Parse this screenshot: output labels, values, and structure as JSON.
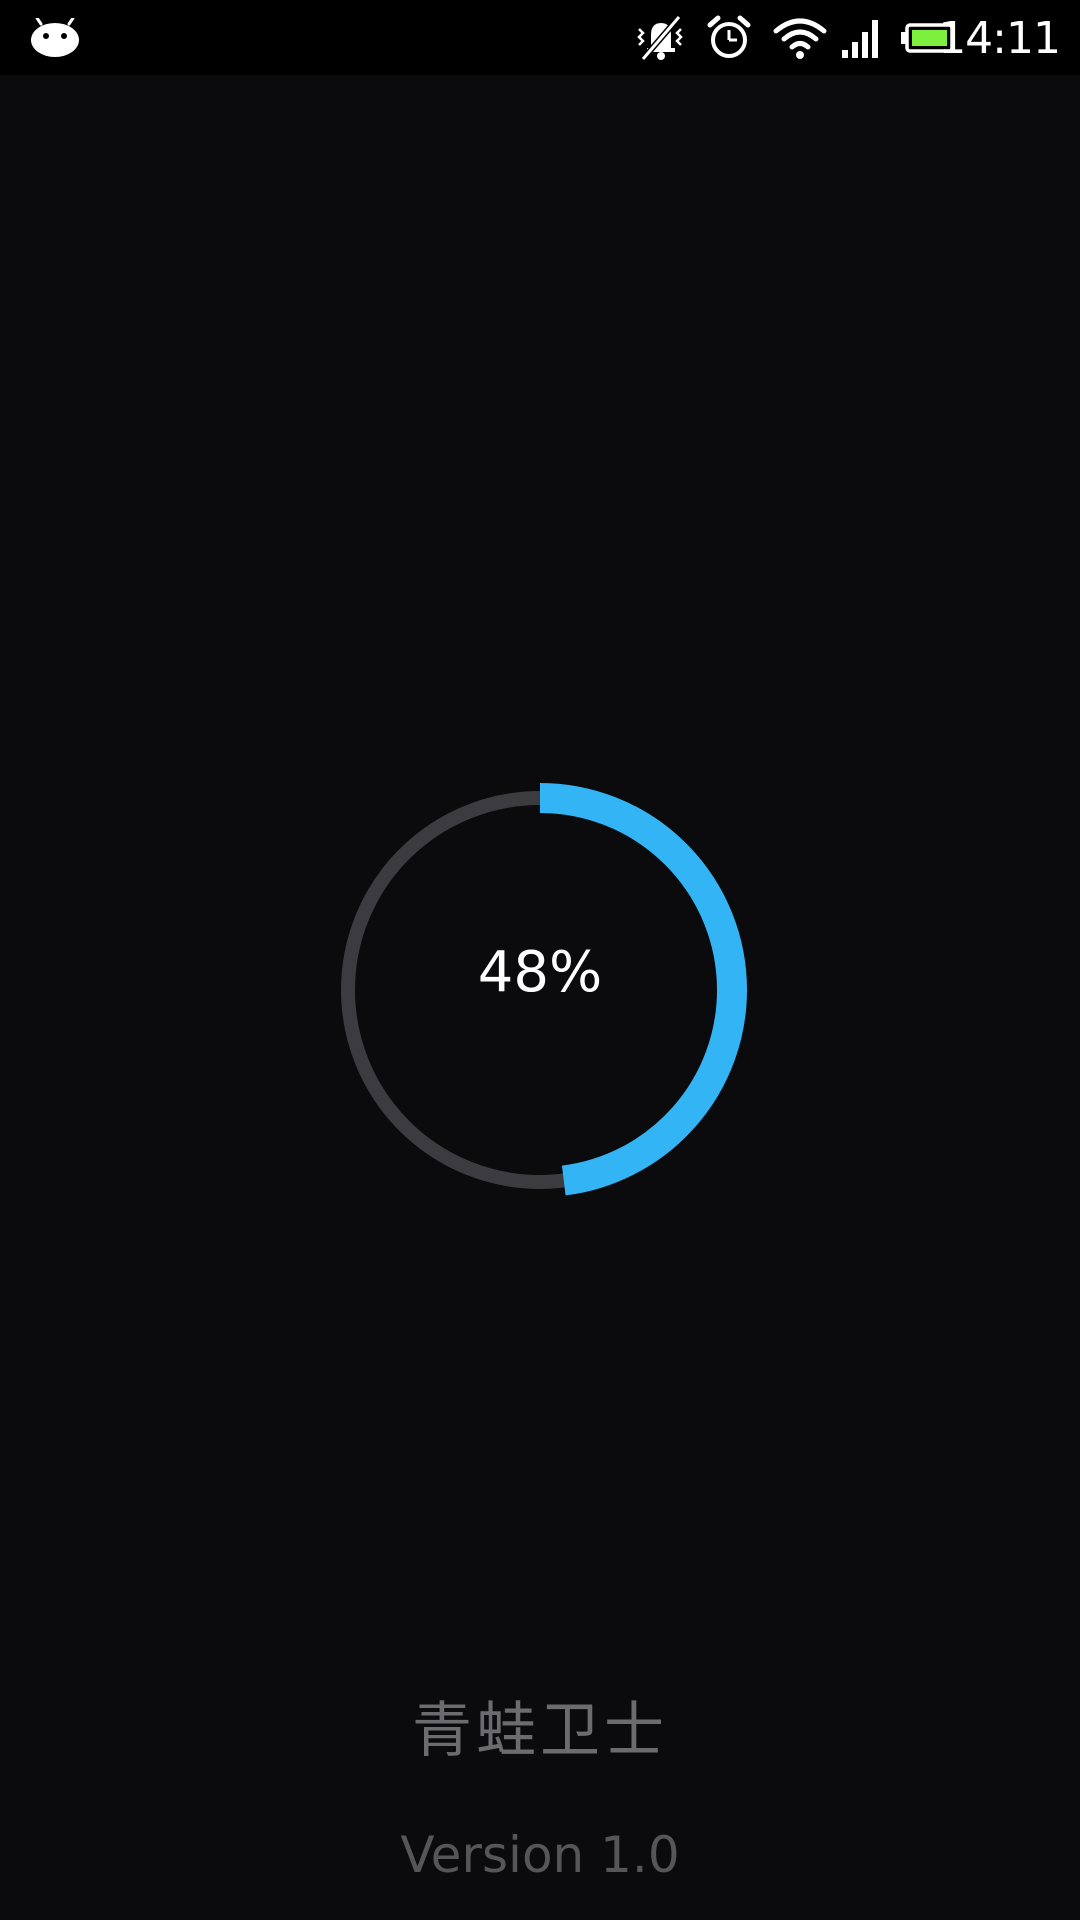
{
  "status_bar": {
    "time": "14:11",
    "icons": [
      "android-icon",
      "mute-icon",
      "alarm-icon",
      "wifi-icon",
      "signal-icon",
      "battery-icon"
    ],
    "battery_color": "#7cf03c"
  },
  "progress": {
    "value": 0.48,
    "label": "48%",
    "accent_color": "#33b5f5",
    "track_color": "#3b3b40"
  },
  "app": {
    "name": "青蛙卫士",
    "version": "Version 1.0"
  }
}
